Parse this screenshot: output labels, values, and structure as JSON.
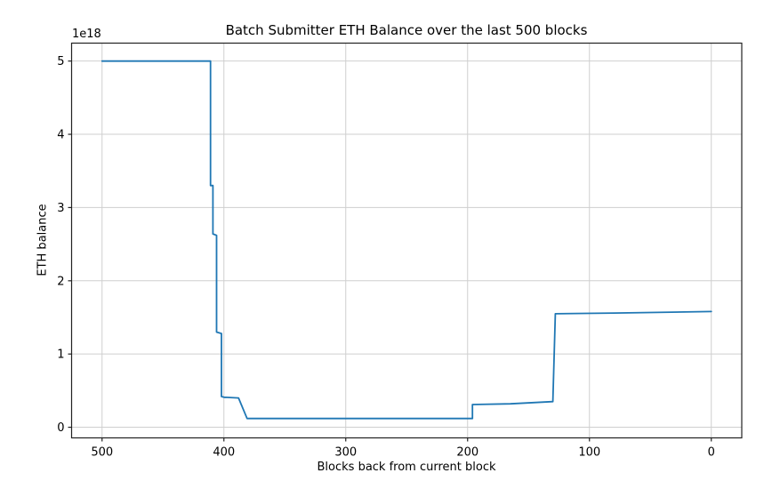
{
  "figure": {
    "title": "Batch Submitter ETH Balance over the last 500 blocks",
    "xlabel": "Blocks back from current block",
    "ylabel": "ETH balance",
    "y_offset_text": "1e18"
  },
  "chart_data": {
    "type": "line",
    "title": "Batch Submitter ETH Balance over the last 500 blocks",
    "xlabel": "Blocks back from current block",
    "ylabel": "ETH balance",
    "y_offset_text": "1e18",
    "y_unit_multiplier": "1e18",
    "x_inverted": true,
    "xlim": [
      525,
      -25
    ],
    "ylim": [
      -0.145,
      5.245
    ],
    "x_ticks": [
      500,
      400,
      300,
      200,
      100,
      0
    ],
    "y_ticks": [
      0,
      1,
      2,
      3,
      4,
      5
    ],
    "grid": true,
    "legend": "none",
    "colors": {
      "line": "#1f77b4",
      "grid": "#cfcfcf",
      "spine": "#222222",
      "text": "#000000",
      "background": "#ffffff"
    },
    "series": [
      {
        "name": "ETH balance",
        "points": [
          [
            500,
            5.0
          ],
          [
            411,
            5.0
          ],
          [
            411,
            3.3
          ],
          [
            409,
            3.3
          ],
          [
            409,
            2.64
          ],
          [
            406,
            2.62
          ],
          [
            406,
            1.3
          ],
          [
            402,
            1.28
          ],
          [
            402,
            0.42
          ],
          [
            400,
            0.41
          ],
          [
            388,
            0.4
          ],
          [
            381,
            0.12
          ],
          [
            196,
            0.12
          ],
          [
            196,
            0.31
          ],
          [
            165,
            0.32
          ],
          [
            130,
            0.35
          ],
          [
            128,
            1.55
          ],
          [
            80,
            1.56
          ],
          [
            0,
            1.58
          ]
        ]
      }
    ]
  }
}
